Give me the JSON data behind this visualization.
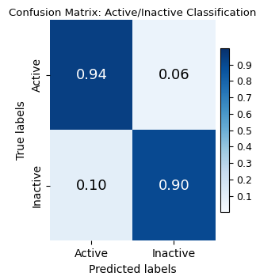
{
  "title": "Confusion Matrix: Active/Inactive Classification",
  "matrix": [
    [
      0.94,
      0.06
    ],
    [
      0.1,
      0.9
    ]
  ],
  "x_labels": [
    "Active",
    "Inactive"
  ],
  "y_labels": [
    "Active",
    "Inactive"
  ],
  "xlabel": "Predicted labels",
  "ylabel": "True labels",
  "cmap": "Blues",
  "vmin": 0.0,
  "vmax": 1.0,
  "text_threshold": 0.5,
  "cell_fontsize": 13,
  "title_fontsize": 9.5,
  "label_fontsize": 10,
  "tick_fontsize": 10,
  "colorbar_ticks": [
    0.1,
    0.2,
    0.3,
    0.4,
    0.5,
    0.6,
    0.7,
    0.8,
    0.9
  ],
  "colorbar_tick_fontsize": 9
}
